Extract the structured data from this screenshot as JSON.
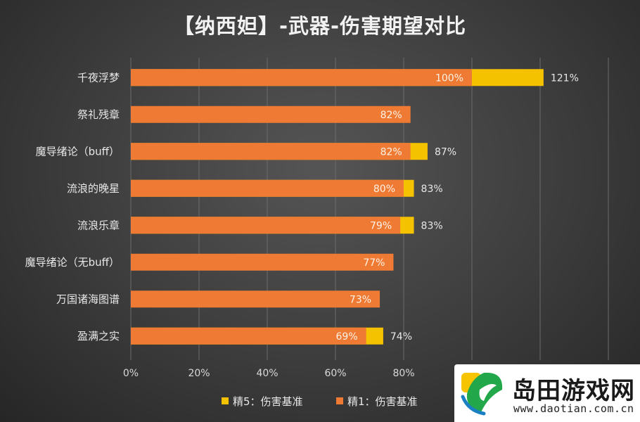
{
  "chart_data": {
    "type": "bar",
    "orientation": "horizontal",
    "stacked": true,
    "title": "【纳西妲】-武器-伤害期望对比",
    "categories": [
      "千夜浮梦",
      "祭礼残章",
      "魔导绪论（buff）",
      "流浪的晚星",
      "流浪乐章",
      "魔导绪论（无buff）",
      "万国诸海图谱",
      "盈满之实"
    ],
    "series": [
      {
        "name": "精1：伤害基准",
        "color": "#ee7a33",
        "values": [
          100,
          82,
          82,
          80,
          79,
          77,
          73,
          69
        ],
        "labels": [
          "100%",
          "82%",
          "82%",
          "80%",
          "79%",
          "77%",
          "73%",
          "69%"
        ]
      },
      {
        "name": "精5：伤害基准",
        "color": "#f5c200",
        "totals": [
          121,
          82,
          87,
          83,
          83,
          77,
          73,
          74
        ],
        "labels": [
          "121%",
          "",
          "87%",
          "83%",
          "83%",
          "",
          "",
          "74%"
        ]
      }
    ],
    "x_ticks": [
      "0%",
      "20%",
      "40%",
      "60%",
      "80%"
    ],
    "xlim": [
      0,
      140
    ],
    "grid": true,
    "legend_position": "bottom"
  },
  "watermark": {
    "name": "岛田游戏网",
    "url": "www.daotian.com.cn"
  },
  "icons": {
    "watermark_logo": "leaf-swirl-logo"
  }
}
